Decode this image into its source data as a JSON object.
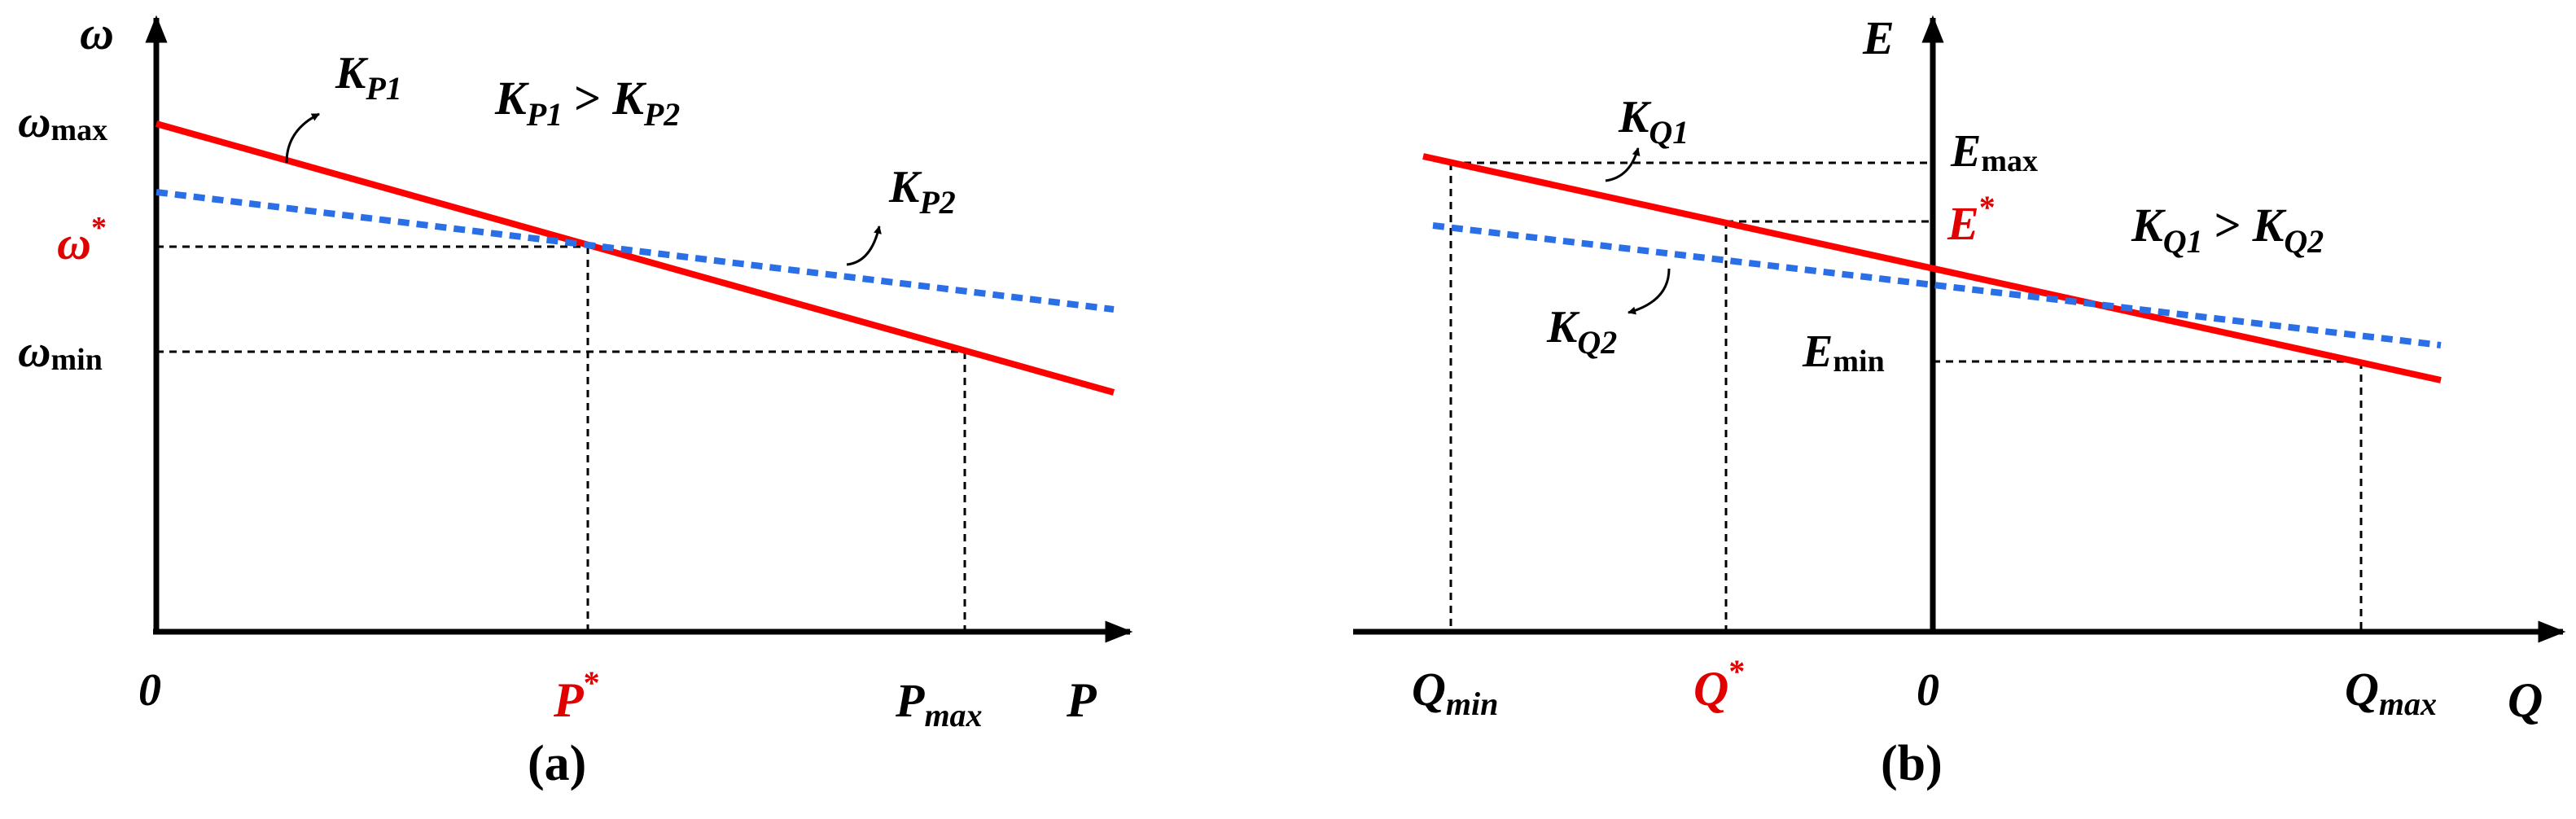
{
  "colors": {
    "axis": "#000000",
    "line_kp1": "#ff0000",
    "line_kp2": "#2b6fe6",
    "highlight_text": "#e00000",
    "guide": "#000000"
  },
  "panel_a": {
    "caption": "(a)",
    "y_axis_label": "ω",
    "x_axis_label": "P",
    "origin_label": "0",
    "y_ticks": {
      "max_base": "ω",
      "max_sub": "max",
      "ref_base": "ω",
      "ref_sup": "*",
      "min_base": "ω",
      "min_sub": "min"
    },
    "x_ticks": {
      "ref_base": "P",
      "ref_sup": "*",
      "max_base": "P",
      "max_sub": "max"
    },
    "line1_label": {
      "base": "K",
      "sub": "P1"
    },
    "line2_label": {
      "base": "K",
      "sub": "P2"
    },
    "relation": {
      "k1": "K",
      "k1_sub": "P1",
      "op": ">",
      "k2": "K",
      "k2_sub": "P2"
    }
  },
  "panel_b": {
    "caption": "(b)",
    "y_axis_label": "E",
    "x_axis_label": "Q",
    "origin_label": "0",
    "y_ticks": {
      "max_base": "E",
      "max_sub": "max",
      "ref_base": "E",
      "ref_sup": "*",
      "min_base": "E",
      "min_sub": "min"
    },
    "x_ticks": {
      "min_base": "Q",
      "min_sub": "min",
      "ref_base": "Q",
      "ref_sup": "*",
      "max_base": "Q",
      "max_sub": "max"
    },
    "line1_label": {
      "base": "K",
      "sub": "Q1"
    },
    "line2_label": {
      "base": "K",
      "sub": "Q2"
    },
    "relation": {
      "k1": "K",
      "k1_sub": "Q1",
      "op": ">",
      "k2": "K",
      "k2_sub": "Q2"
    }
  }
}
